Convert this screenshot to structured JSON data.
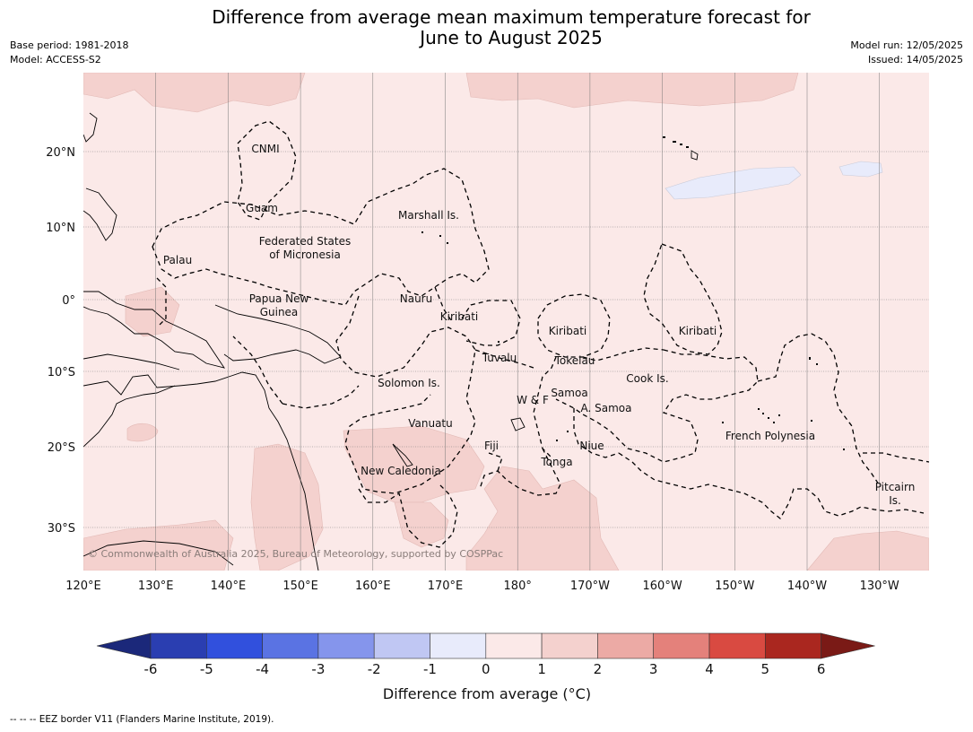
{
  "title_line1": "Difference from average mean maximum temperature forecast for",
  "title_line2": "June to August 2025",
  "base_period": "Base period: 1981-2018",
  "model": "Model: ACCESS-S2",
  "model_run": "Model run: 12/05/2025",
  "issued": "Issued: 14/05/2025",
  "copyright": "© Commonwealth of Australia 2025, Bureau of Meteorology, supported by COSPPac",
  "footnote": "--  --  -- EEZ border V11 (Flanders Marine Institute, 2019).",
  "colorbar": {
    "title": "Difference from average (°C)",
    "ticks": [
      "-6",
      "-5",
      "-4",
      "-3",
      "-2",
      "-1",
      "0",
      "1",
      "2",
      "3",
      "4",
      "5",
      "6"
    ],
    "colors": [
      "#1b287a",
      "#2a3eb1",
      "#3150dd",
      "#5a73e3",
      "#8595ec",
      "#c0c7f3",
      "#e8ebfb",
      "#fbe9e8",
      "#f4d1ce",
      "#ecaaa5",
      "#e4817b",
      "#d94a41",
      "#aa271f",
      "#7a1a16"
    ]
  },
  "map": {
    "background_color": "#fbe9e8",
    "anomaly_1_2_color": "#f4d1ce",
    "anomaly_neg_color": "#e8ebfb",
    "lat_ticks": [
      "20°N",
      "10°N",
      "0°",
      "10°S",
      "20°S",
      "30°S"
    ],
    "lon_ticks": [
      "120°E",
      "130°E",
      "140°E",
      "150°E",
      "160°E",
      "170°E",
      "180°",
      "170°W",
      "160°W",
      "150°W",
      "140°W",
      "130°W"
    ],
    "regions": {
      "cnmi": "CNMI",
      "guam": "Guam",
      "marshall": "Marshall Is.",
      "fsm1": "Federated States",
      "fsm2": "of Micronesia",
      "palau": "Palau",
      "png1": "Papua New",
      "png2": "Guinea",
      "nauru": "Nauru",
      "kiribati_w": "Kiribati",
      "kiribati_c": "Kiribati",
      "kiribati_e": "Kiribati",
      "tuvalu": "Tuvalu",
      "tokelau": "Tokelau",
      "cook": "Cook Is.",
      "solomon": "Solomon Is.",
      "wf": "W & F",
      "samoa": "Samoa",
      "asamoa": "A. Samoa",
      "vanuatu": "Vanuatu",
      "fiji": "Fiji",
      "niue": "Niue",
      "tonga": "Tonga",
      "french_poly": "French Polynesia",
      "new_caledonia": "New Caledonia",
      "pitcairn1": "Pitcairn",
      "pitcairn2": "Is."
    }
  }
}
